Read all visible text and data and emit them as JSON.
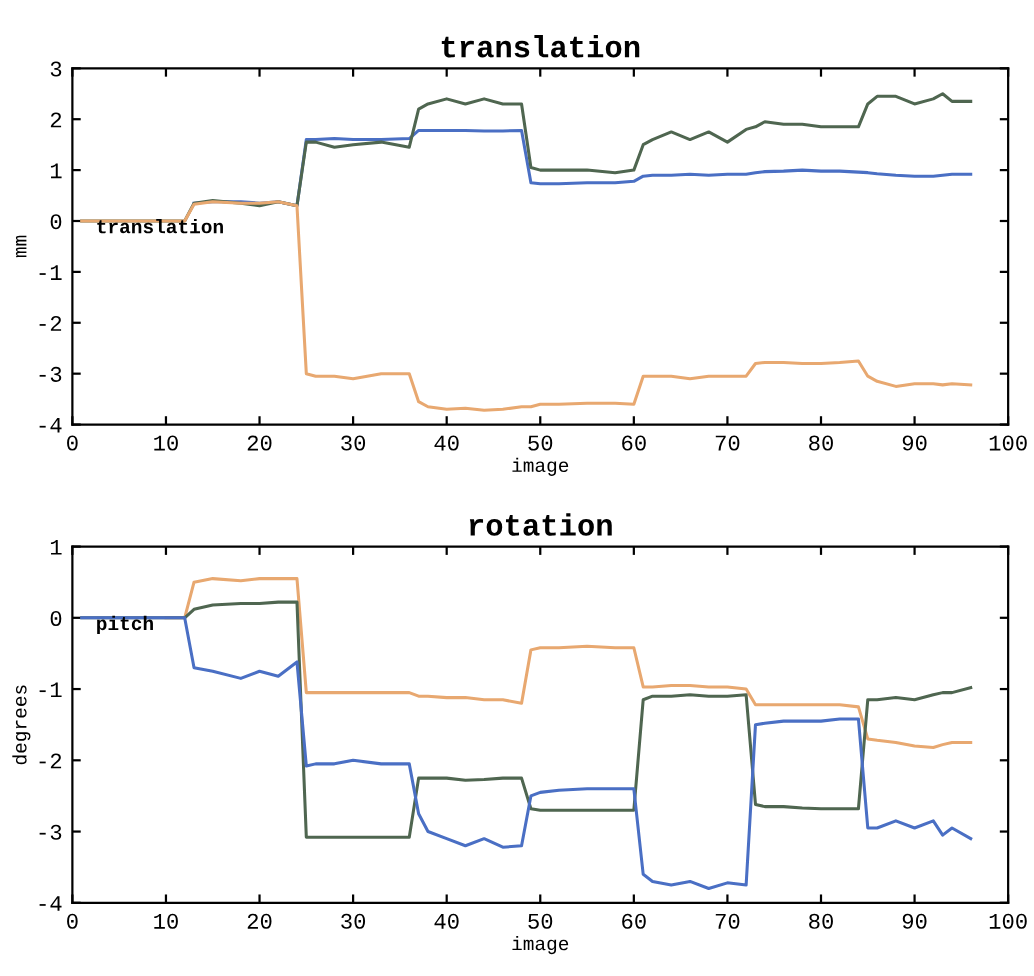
{
  "chart_data": [
    {
      "type": "line",
      "title": "translation",
      "xlabel": "image",
      "ylabel": "mm",
      "annotations": [
        "translation"
      ],
      "x": [
        1,
        5,
        10,
        12,
        13,
        15,
        18,
        20,
        22,
        24,
        25,
        26,
        28,
        30,
        33,
        36,
        37,
        38,
        40,
        42,
        44,
        46,
        48,
        49,
        50,
        52,
        55,
        58,
        60,
        61,
        62,
        64,
        66,
        68,
        70,
        72,
        73,
        74,
        76,
        78,
        80,
        82,
        84,
        85,
        86,
        88,
        90,
        92,
        93,
        94,
        96
      ],
      "series": [
        {
          "color": "#4a6fc4",
          "values": [
            null,
            null,
            null,
            null,
            0.35,
            0.38,
            0.38,
            0.35,
            0.38,
            0.3,
            1.6,
            1.6,
            1.62,
            1.6,
            1.6,
            1.62,
            1.78,
            1.78,
            1.78,
            1.78,
            1.77,
            1.77,
            1.78,
            0.75,
            0.73,
            0.73,
            0.75,
            0.75,
            0.78,
            0.88,
            0.9,
            0.9,
            0.92,
            0.9,
            0.92,
            0.92,
            0.95,
            0.97,
            0.98,
            1.0,
            0.98,
            0.98,
            0.96,
            0.95,
            0.93,
            0.9,
            0.88,
            0.88,
            0.9,
            0.92,
            0.92
          ]
        },
        {
          "color": "#4f6650",
          "values": [
            0,
            0,
            0,
            0,
            0.35,
            0.4,
            0.35,
            0.3,
            0.38,
            0.3,
            1.55,
            1.55,
            1.45,
            1.5,
            1.55,
            1.45,
            2.2,
            2.3,
            2.4,
            2.3,
            2.4,
            2.3,
            2.3,
            1.05,
            1.0,
            1.0,
            1.0,
            0.95,
            1.0,
            1.5,
            1.6,
            1.75,
            1.6,
            1.75,
            1.55,
            1.8,
            1.85,
            1.95,
            1.9,
            1.9,
            1.85,
            1.85,
            1.85,
            2.3,
            2.45,
            2.45,
            2.3,
            2.4,
            2.5,
            2.35,
            2.35
          ]
        },
        {
          "color": "#e8a870",
          "values": [
            0,
            0,
            0,
            0,
            0.33,
            0.38,
            0.35,
            0.35,
            0.38,
            0.3,
            -3.0,
            -3.05,
            -3.05,
            -3.1,
            -3.0,
            -3.0,
            -3.55,
            -3.65,
            -3.7,
            -3.68,
            -3.72,
            -3.7,
            -3.65,
            -3.65,
            -3.6,
            -3.6,
            -3.58,
            -3.58,
            -3.6,
            -3.05,
            -3.05,
            -3.05,
            -3.1,
            -3.05,
            -3.05,
            -3.05,
            -2.8,
            -2.78,
            -2.78,
            -2.8,
            -2.8,
            -2.78,
            -2.75,
            -3.05,
            -3.15,
            -3.25,
            -3.2,
            -3.2,
            -3.22,
            -3.2,
            -3.22
          ]
        }
      ],
      "xlim": [
        0,
        100
      ],
      "xticks": [
        0,
        10,
        20,
        30,
        40,
        50,
        60,
        70,
        80,
        90,
        100
      ],
      "ylim": [
        -4,
        3
      ],
      "yticks": [
        -4,
        -3,
        -2,
        -1,
        0,
        1,
        2,
        3
      ],
      "grid": false,
      "legend": false
    },
    {
      "type": "line",
      "title": "rotation",
      "xlabel": "image",
      "ylabel": "degrees",
      "annotations": [
        "pitch"
      ],
      "x": [
        1,
        5,
        10,
        12,
        13,
        15,
        18,
        20,
        22,
        24,
        25,
        26,
        28,
        30,
        33,
        36,
        37,
        38,
        40,
        42,
        44,
        46,
        48,
        49,
        50,
        52,
        55,
        58,
        60,
        61,
        62,
        64,
        66,
        68,
        70,
        72,
        73,
        74,
        76,
        78,
        80,
        82,
        84,
        85,
        86,
        88,
        90,
        92,
        93,
        94,
        96
      ],
      "series": [
        {
          "color": "#e8a870",
          "values": [
            null,
            null,
            0,
            0,
            0.5,
            0.55,
            0.52,
            0.55,
            0.55,
            0.55,
            -1.05,
            -1.05,
            -1.05,
            -1.05,
            -1.05,
            -1.05,
            -1.1,
            -1.1,
            -1.12,
            -1.12,
            -1.15,
            -1.15,
            -1.2,
            -0.45,
            -0.42,
            -0.42,
            -0.4,
            -0.42,
            -0.42,
            -0.97,
            -0.97,
            -0.95,
            -0.95,
            -0.97,
            -0.97,
            -1.0,
            -1.22,
            -1.22,
            -1.22,
            -1.22,
            -1.22,
            -1.22,
            -1.25,
            -1.7,
            -1.72,
            -1.75,
            -1.8,
            -1.82,
            -1.78,
            -1.75,
            -1.75
          ]
        },
        {
          "color": "#4f6650",
          "values": [
            0,
            0,
            0,
            0,
            0.12,
            0.18,
            0.2,
            0.2,
            0.22,
            0.22,
            -3.08,
            -3.08,
            -3.08,
            -3.08,
            -3.08,
            -3.08,
            -2.25,
            -2.25,
            -2.25,
            -2.28,
            -2.27,
            -2.25,
            -2.25,
            -2.68,
            -2.7,
            -2.7,
            -2.7,
            -2.7,
            -2.7,
            -1.15,
            -1.1,
            -1.1,
            -1.08,
            -1.1,
            -1.1,
            -1.08,
            -2.62,
            -2.65,
            -2.65,
            -2.67,
            -2.68,
            -2.68,
            -2.68,
            -1.15,
            -1.15,
            -1.12,
            -1.15,
            -1.08,
            -1.05,
            -1.05,
            -0.98
          ]
        },
        {
          "color": "#4a6fc4",
          "values": [
            0,
            0,
            0,
            0,
            -0.7,
            -0.75,
            -0.85,
            -0.75,
            -0.82,
            -0.62,
            -2.08,
            -2.05,
            -2.05,
            -2.0,
            -2.05,
            -2.05,
            -2.75,
            -3.0,
            -3.1,
            -3.2,
            -3.1,
            -3.22,
            -3.2,
            -2.5,
            -2.45,
            -2.42,
            -2.4,
            -2.4,
            -2.4,
            -3.6,
            -3.7,
            -3.75,
            -3.7,
            -3.8,
            -3.72,
            -3.75,
            -1.5,
            -1.48,
            -1.45,
            -1.45,
            -1.45,
            -1.42,
            -1.42,
            -2.95,
            -2.95,
            -2.85,
            -2.95,
            -2.85,
            -3.05,
            -2.95,
            -3.1
          ]
        }
      ],
      "xlim": [
        0,
        100
      ],
      "xticks": [
        0,
        10,
        20,
        30,
        40,
        50,
        60,
        70,
        80,
        90,
        100
      ],
      "ylim": [
        -4,
        1
      ],
      "yticks": [
        -4,
        -3,
        -2,
        -1,
        0,
        1
      ],
      "grid": false,
      "legend": false
    }
  ]
}
